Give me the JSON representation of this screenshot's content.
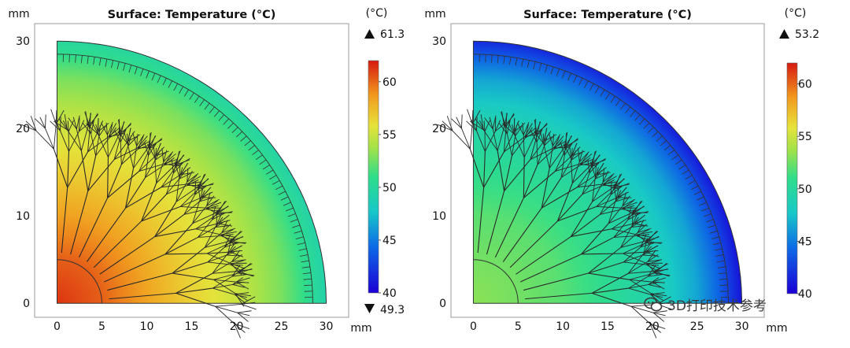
{
  "chart_data": [
    {
      "type": "heatmap",
      "title": "Surface: Temperature (°C)",
      "xunit": "mm",
      "yunit": "mm",
      "xlim": [
        -2.5,
        32.5
      ],
      "ylim": [
        -1.6,
        32
      ],
      "xticks": [
        0,
        5,
        10,
        15,
        20,
        25,
        30
      ],
      "yticks": [
        0,
        10,
        20,
        30
      ],
      "domain_radius_mm": 30,
      "domain_shape": "quarter-disc",
      "colorbar": {
        "unit": "(°C)",
        "range": [
          40,
          62
        ],
        "ticks": [
          40,
          45,
          50,
          55,
          60
        ],
        "max_label": "61.3",
        "min_label": "49.3"
      },
      "temperature_field": {
        "max": 61.3,
        "min": 49.3,
        "hot_spot": "origin",
        "profile": [
          {
            "r": 0,
            "temp": 61.3
          },
          {
            "r": 5,
            "temp": 60.2
          },
          {
            "r": 10,
            "temp": 58.3
          },
          {
            "r": 15,
            "temp": 56.5
          },
          {
            "r": 20,
            "temp": 55.0
          },
          {
            "r": 25,
            "temp": 52.8
          },
          {
            "r": 30,
            "temp": 49.3
          }
        ]
      }
    },
    {
      "type": "heatmap",
      "title": "Surface: Temperature (°C)",
      "xunit": "mm",
      "yunit": "mm",
      "xlim": [
        -2.5,
        32.5
      ],
      "ylim": [
        -1.6,
        32
      ],
      "xticks": [
        0,
        5,
        10,
        15,
        20,
        25,
        30
      ],
      "yticks": [
        0,
        10,
        20,
        30
      ],
      "domain_radius_mm": 30,
      "domain_shape": "quarter-disc",
      "colorbar": {
        "unit": "(°C)",
        "range": [
          40,
          62
        ],
        "ticks": [
          40,
          45,
          50,
          55,
          60
        ],
        "max_label": "53.2",
        "min_label": ""
      },
      "temperature_field": {
        "max": 53.2,
        "hot_spot": "origin",
        "profile": [
          {
            "r": 0,
            "temp": 53.2
          },
          {
            "r": 10,
            "temp": 52.0
          },
          {
            "r": 20,
            "temp": 49.2
          },
          {
            "r": 25,
            "temp": 46.5
          },
          {
            "r": 28,
            "temp": 43.5
          },
          {
            "r": 30,
            "temp": 40.8
          }
        ]
      }
    }
  ],
  "watermark": {
    "text": "3D打印技术参考",
    "icon": "wechat-icon"
  }
}
